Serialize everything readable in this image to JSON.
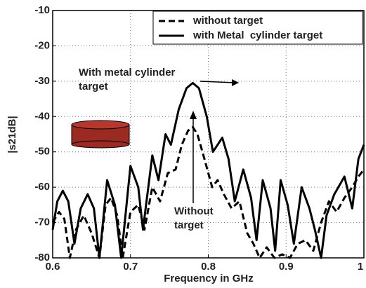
{
  "chart_data": {
    "type": "line",
    "xlabel": "Frequency in GHz",
    "ylabel": "|s21dB|",
    "xlim": [
      0.6,
      1
    ],
    "xticks": [
      0.6,
      0.7,
      0.8,
      0.9,
      1
    ],
    "ylim": [
      -80,
      -10
    ],
    "yticks": [
      -10,
      -20,
      -30,
      -40,
      -50,
      -60,
      -70,
      -80
    ],
    "grid": true,
    "legend": "upper right",
    "annotations": [
      {
        "lines": [
          "With metal cylinder",
          "target"
        ]
      },
      {
        "lines": [
          "Without",
          "target"
        ]
      }
    ],
    "series": [
      {
        "name": "without target",
        "color": "#000000",
        "dash": true,
        "x": [
          0.6,
          0.608,
          0.615,
          0.622,
          0.63,
          0.64,
          0.65,
          0.66,
          0.668,
          0.675,
          0.683,
          0.69,
          0.7,
          0.71,
          0.718,
          0.728,
          0.738,
          0.748,
          0.758,
          0.766,
          0.774,
          0.78,
          0.786,
          0.795,
          0.805,
          0.812,
          0.82,
          0.83,
          0.84,
          0.85,
          0.858,
          0.866,
          0.875,
          0.885,
          0.895,
          0.905,
          0.915,
          0.925,
          0.935,
          0.945,
          0.955,
          0.965,
          0.975,
          0.985,
          0.993,
          1
        ],
        "values": [
          -70,
          -67,
          -69,
          -80,
          -72,
          -68,
          -73,
          -80,
          -65,
          -63,
          -68,
          -80,
          -67,
          -65,
          -72,
          -60,
          -64,
          -56,
          -55,
          -48,
          -44,
          -43,
          -45,
          -52,
          -60,
          -58,
          -62,
          -66,
          -64,
          -73,
          -76,
          -80,
          -77,
          -80,
          -79,
          -80,
          -76,
          -75,
          -78,
          -70,
          -64,
          -67,
          -63,
          -60,
          -57,
          -55
        ]
      },
      {
        "name": "with Metal  cylinder target",
        "color": "#000000",
        "dash": false,
        "x": [
          0.6,
          0.606,
          0.613,
          0.62,
          0.628,
          0.636,
          0.645,
          0.653,
          0.66,
          0.67,
          0.68,
          0.688,
          0.7,
          0.71,
          0.716,
          0.728,
          0.736,
          0.745,
          0.752,
          0.762,
          0.772,
          0.78,
          0.788,
          0.798,
          0.806,
          0.812,
          0.818,
          0.826,
          0.834,
          0.845,
          0.855,
          0.862,
          0.87,
          0.88,
          0.886,
          0.893,
          0.902,
          0.91,
          0.92,
          0.93,
          0.937,
          0.945,
          0.952,
          0.962,
          0.975,
          0.985,
          0.993,
          1
        ],
        "values": [
          -72,
          -64,
          -61,
          -64,
          -76,
          -66,
          -62,
          -66,
          -80,
          -58,
          -65,
          -80,
          -54,
          -60,
          -72,
          -51,
          -58,
          -45,
          -48,
          -38,
          -32,
          -30.5,
          -32,
          -40,
          -50,
          -48,
          -46,
          -52,
          -64,
          -55,
          -63,
          -75,
          -58,
          -66,
          -78,
          -58,
          -65,
          -76,
          -60,
          -66,
          -72,
          -80,
          -68,
          -62,
          -57,
          -66,
          -52,
          -48
        ]
      }
    ]
  }
}
